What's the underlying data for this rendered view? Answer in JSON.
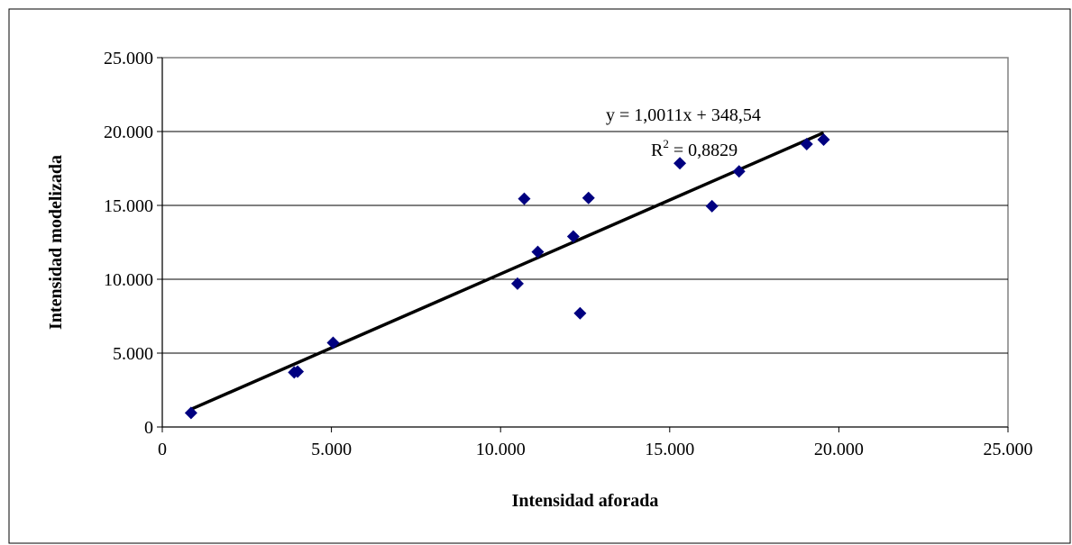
{
  "chart_data": {
    "type": "scatter",
    "xlabel": "Intensidad aforada",
    "ylabel": "Intensidad modelizada",
    "xlim": [
      0,
      25000
    ],
    "ylim": [
      0,
      25000
    ],
    "x_ticks": [
      0,
      5000,
      10000,
      15000,
      20000,
      25000
    ],
    "y_ticks": [
      0,
      5000,
      10000,
      15000,
      20000,
      25000
    ],
    "x_tick_labels": [
      "0",
      "5.000",
      "10.000",
      "15.000",
      "20.000",
      "25.000"
    ],
    "y_tick_labels": [
      "0",
      "5.000",
      "10.000",
      "15.000",
      "20.000",
      "25.000"
    ],
    "grid": "horizontal",
    "marker_color": "#000080",
    "points": [
      {
        "x": 850,
        "y": 950
      },
      {
        "x": 3900,
        "y": 3700
      },
      {
        "x": 4000,
        "y": 3750
      },
      {
        "x": 5050,
        "y": 5700
      },
      {
        "x": 10500,
        "y": 9700
      },
      {
        "x": 10700,
        "y": 15450
      },
      {
        "x": 11100,
        "y": 11850
      },
      {
        "x": 12150,
        "y": 12900
      },
      {
        "x": 12350,
        "y": 7700
      },
      {
        "x": 12600,
        "y": 15500
      },
      {
        "x": 15300,
        "y": 17850
      },
      {
        "x": 16250,
        "y": 14950
      },
      {
        "x": 17050,
        "y": 17300
      },
      {
        "x": 19050,
        "y": 19150
      },
      {
        "x": 19550,
        "y": 19450
      }
    ],
    "trendline": {
      "slope": 1.0011,
      "intercept": 348.54,
      "x_range": [
        850,
        19550
      ],
      "equation_label": "y = 1,0011x + 348,54",
      "r2_prefix": "R",
      "r2_superscript": "2",
      "r2_value": " = 0,8829"
    }
  }
}
